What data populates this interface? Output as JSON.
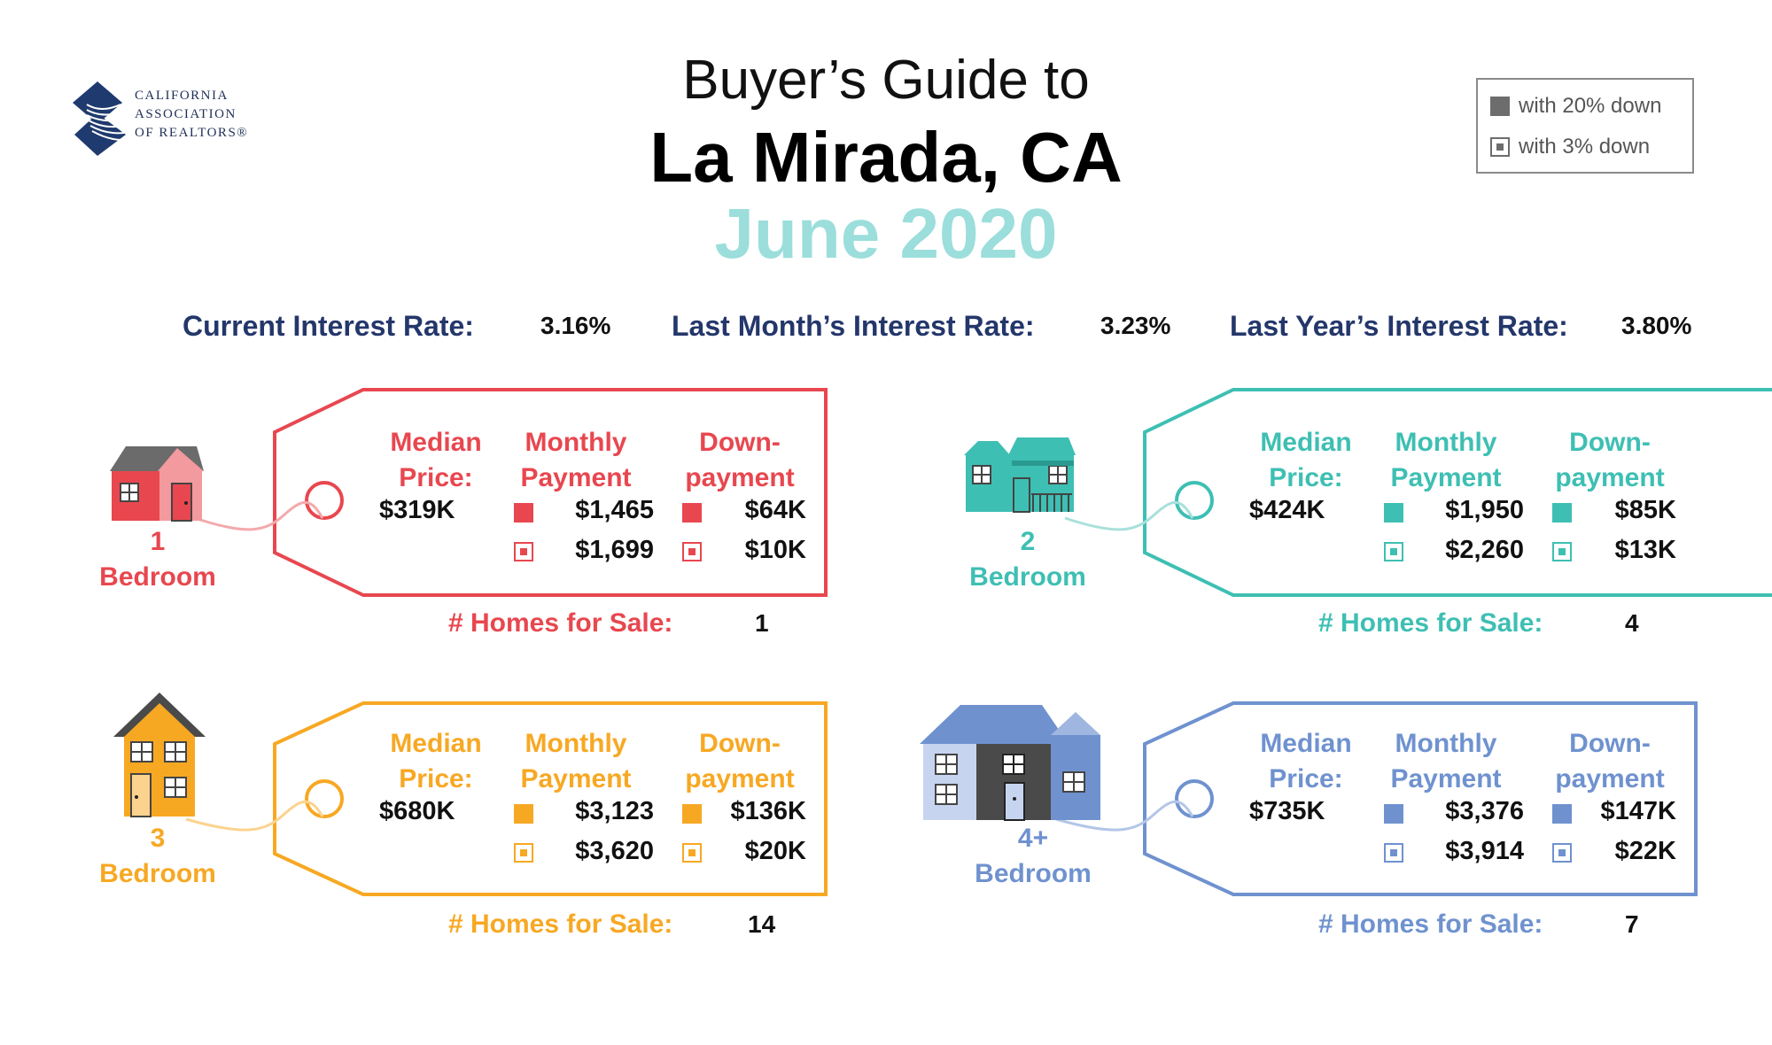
{
  "logo": {
    "lines": [
      "CALIFORNIA",
      "ASSOCIATION",
      "OF REALTORS®"
    ]
  },
  "header": {
    "line1": "Buyer’s Guide to",
    "line2": "La Mirada, CA",
    "line3": "June 2020"
  },
  "legend": {
    "solid_label": "with 20% down",
    "open_label": "with 3% down"
  },
  "rates": {
    "current_label": "Current Interest Rate:",
    "current_value": "3.16%",
    "last_month_label": "Last Month’s Interest Rate:",
    "last_month_value": "3.23%",
    "last_year_label": "Last Year’s Interest Rate:",
    "last_year_value": "3.80%"
  },
  "columns": {
    "median": [
      "Median",
      "Price:"
    ],
    "monthly": [
      "Monthly",
      "Payment"
    ],
    "down": [
      "Down-",
      "payment"
    ]
  },
  "homes_label": "# Homes for Sale:",
  "bedroom_word": "Bedroom",
  "cards": [
    {
      "beds": "1",
      "color": "#e8474f",
      "median": "$319K",
      "monthly_20": "$1,465",
      "monthly_3": "$1,699",
      "down_20": "$64K",
      "down_3": "$10K",
      "homes": "1"
    },
    {
      "beds": "2",
      "color": "#3ebfb3",
      "median": "$424K",
      "monthly_20": "$1,950",
      "monthly_3": "$2,260",
      "down_20": "$85K",
      "down_3": "$13K",
      "homes": "4"
    },
    {
      "beds": "3",
      "color": "#f7a823",
      "median": "$680K",
      "monthly_20": "$3,123",
      "monthly_3": "$3,620",
      "down_20": "$136K",
      "down_3": "$20K",
      "homes": "14"
    },
    {
      "beds": "4+",
      "color": "#6f92cf",
      "median": "$735K",
      "monthly_20": "$3,376",
      "monthly_3": "$3,914",
      "down_20": "$147K",
      "down_3": "$22K",
      "homes": "7"
    }
  ]
}
